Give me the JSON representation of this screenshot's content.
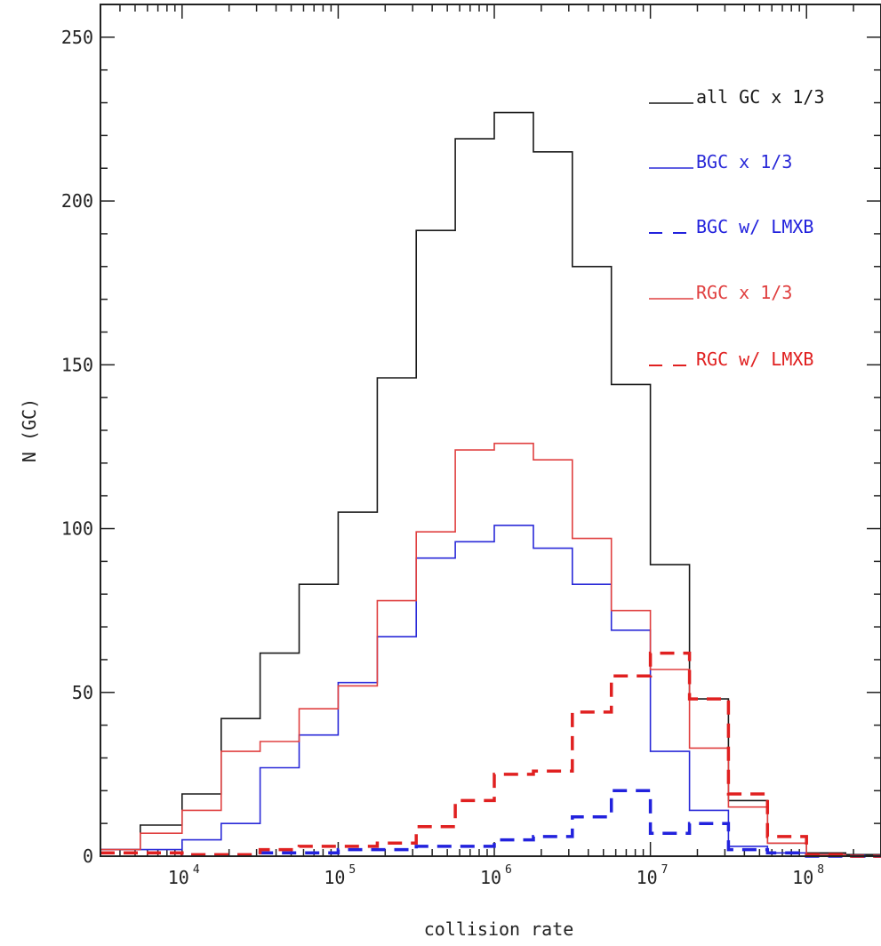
{
  "chart_data": {
    "type": "line",
    "xlabel": "collision rate",
    "ylabel": "N (GC)",
    "x_scale": "log",
    "xlim": [
      3000,
      300000000
    ],
    "ylim": [
      0,
      260
    ],
    "x_tick_labels": [
      {
        "base": "10",
        "exp": "4",
        "value": 10000
      },
      {
        "base": "10",
        "exp": "5",
        "value": 100000
      },
      {
        "base": "10",
        "exp": "6",
        "value": 1000000
      },
      {
        "base": "10",
        "exp": "7",
        "value": 10000000
      },
      {
        "base": "10",
        "exp": "8",
        "value": 100000000
      }
    ],
    "y_ticks": [
      0,
      50,
      100,
      150,
      200,
      250
    ],
    "y_tick_labels": [
      "0",
      "50",
      "100",
      "150",
      "200",
      "250"
    ],
    "bin_edges": [
      3000,
      5400,
      10000,
      17800,
      31600,
      56200,
      100000,
      178000,
      316000,
      562000,
      1000000,
      1780000,
      3160000,
      5620000,
      10000000,
      17800000,
      31600000,
      56200000,
      100000000,
      178000000,
      300000000
    ],
    "series": [
      {
        "name": "all GC x 1/3",
        "color": "#1a1a1a",
        "dashed": false,
        "values": [
          2,
          9.5,
          19,
          42,
          62,
          83,
          105,
          146,
          191,
          219,
          227,
          215,
          180,
          144,
          89,
          48,
          17,
          4,
          1,
          0.5
        ]
      },
      {
        "name": "BGC x 1/3",
        "color": "#2a2ad8",
        "dashed": false,
        "values": [
          2,
          2,
          5,
          10,
          27,
          37,
          53,
          67,
          91,
          96,
          101,
          94,
          83,
          69,
          32,
          14,
          3,
          1,
          0.5,
          0
        ]
      },
      {
        "name": "BGC w/ LMXB",
        "color": "#2222dd",
        "dashed": true,
        "values": [
          1,
          1,
          0.5,
          0.5,
          1,
          1,
          2,
          2,
          3,
          3,
          5,
          6,
          12,
          20,
          7,
          10,
          2,
          1,
          0,
          0
        ]
      },
      {
        "name": "RGC x 1/3",
        "color": "#e04040",
        "dashed": false,
        "values": [
          2,
          7,
          14,
          32,
          35,
          45,
          52,
          78,
          99,
          124,
          126,
          121,
          97,
          75,
          57,
          33,
          15,
          4,
          0.5,
          0
        ]
      },
      {
        "name": "RGC w/ LMXB",
        "color": "#e02020",
        "dashed": true,
        "values": [
          1,
          1,
          0.5,
          0.5,
          2,
          3,
          3,
          4,
          9,
          17,
          25,
          26,
          44,
          55,
          62,
          48,
          19,
          6,
          0.5,
          0
        ]
      }
    ],
    "legend_position": "top-right"
  }
}
